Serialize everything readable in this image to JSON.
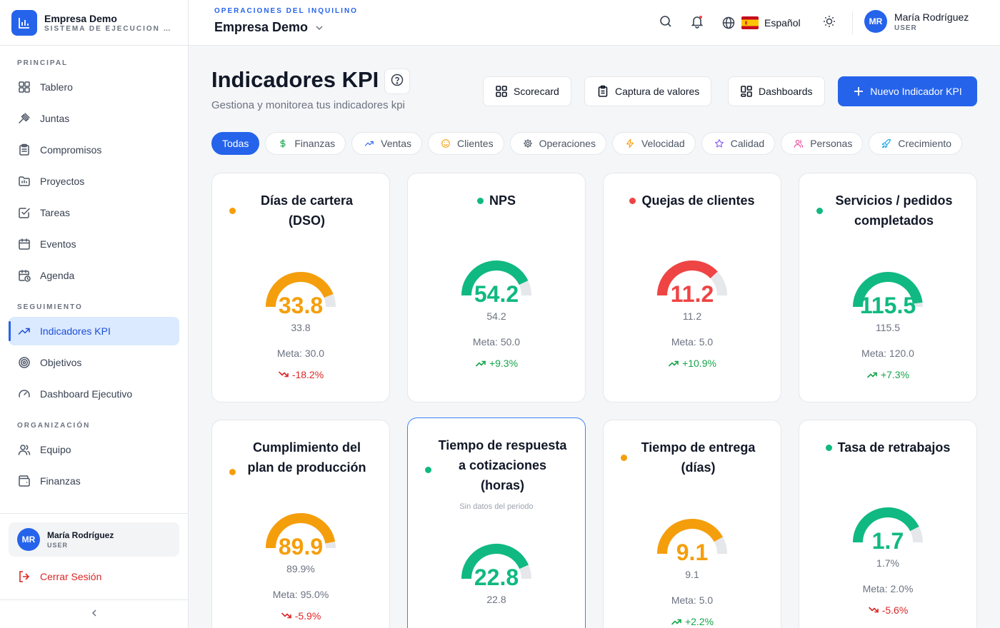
{
  "brand": {
    "name": "Empresa Demo",
    "subtitle": "SISTEMA DE EJECUCIÓN EMPRESARIAL"
  },
  "sidebar": {
    "sections": [
      {
        "label": "PRINCIPAL",
        "items": [
          {
            "label": "Tablero",
            "icon": "grid-icon"
          },
          {
            "label": "Juntas",
            "icon": "gavel-icon"
          },
          {
            "label": "Compromisos",
            "icon": "clipboard-icon"
          },
          {
            "label": "Proyectos",
            "icon": "folder-icon"
          },
          {
            "label": "Tareas",
            "icon": "checkbox-icon"
          },
          {
            "label": "Eventos",
            "icon": "calendar-icon"
          },
          {
            "label": "Agenda",
            "icon": "calendar-clock-icon"
          }
        ]
      },
      {
        "label": "SEGUIMIENTO",
        "items": [
          {
            "label": "Indicadores KPI",
            "icon": "trending-up-icon",
            "active": true
          },
          {
            "label": "Objetivos",
            "icon": "target-icon"
          },
          {
            "label": "Dashboard Ejecutivo",
            "icon": "gauge-icon"
          }
        ]
      },
      {
        "label": "ORGANIZACIÓN",
        "items": [
          {
            "label": "Equipo",
            "icon": "users-icon"
          },
          {
            "label": "Finanzas",
            "icon": "wallet-icon"
          }
        ]
      }
    ],
    "user": {
      "initials": "MR",
      "name": "María Rodríguez",
      "role": "USER"
    },
    "logout_label": "Cerrar Sesión"
  },
  "header": {
    "tenant_label": "OPERACIONES DEL INQUILINO",
    "tenant_name": "Empresa Demo",
    "language": "Español",
    "user": {
      "initials": "MR",
      "name": "María Rodríguez",
      "role": "USER"
    }
  },
  "page": {
    "title": "Indicadores KPI",
    "subtitle": "Gestiona y monitorea tus indicadores kpi",
    "buttons": {
      "scorecard": "Scorecard",
      "capture": "Captura de valores",
      "dashboards": "Dashboards",
      "new": "Nuevo Indicador KPI"
    }
  },
  "filters": [
    {
      "label": "Todas",
      "icon": "",
      "active": true
    },
    {
      "label": "Finanzas",
      "icon": "dollar-icon"
    },
    {
      "label": "Ventas",
      "icon": "trending-up-icon"
    },
    {
      "label": "Clientes",
      "icon": "smile-icon"
    },
    {
      "label": "Operaciones",
      "icon": "cog-icon"
    },
    {
      "label": "Velocidad",
      "icon": "bolt-icon"
    },
    {
      "label": "Calidad",
      "icon": "star-icon"
    },
    {
      "label": "Personas",
      "icon": "users-icon"
    },
    {
      "label": "Crecimiento",
      "icon": "rocket-icon"
    }
  ],
  "colors": {
    "amber": "#f59e0b",
    "green": "#10b981",
    "red": "#ef4444",
    "trend_up": "#16a34a",
    "trend_down": "#dc2626"
  },
  "kpis": [
    {
      "title": "Días de cartera (DSO)",
      "status": "amber",
      "value": "33.8",
      "small": "33.8",
      "goal": "Meta: 30.0",
      "trend": "-18.2%",
      "trend_dir": "down",
      "fill": 0.88
    },
    {
      "title": "NPS",
      "status": "green",
      "value": "54.2",
      "small": "54.2",
      "goal": "Meta: 50.0",
      "trend": "+9.3%",
      "trend_dir": "up",
      "fill": 0.86
    },
    {
      "title": "Quejas de clientes",
      "status": "red",
      "value": "11.2",
      "small": "11.2",
      "goal": "Meta: 5.0",
      "trend": "+10.9%",
      "trend_dir": "up",
      "fill": 0.76
    },
    {
      "title": "Servicios / pedidos completados",
      "status": "green",
      "value": "115.5",
      "small": "115.5",
      "goal": "Meta: 120.0",
      "trend": "+7.3%",
      "trend_dir": "up",
      "fill": 0.96
    },
    {
      "title": "Cumplimiento del plan de producción",
      "status": "amber",
      "value": "89.9",
      "small": "89.9%",
      "goal": "Meta: 95.0%",
      "trend": "-5.9%",
      "trend_dir": "down",
      "fill": 0.94
    },
    {
      "title": "Tiempo de respuesta a cotizaciones (horas)",
      "status": "green",
      "note": "Sin datos del periodo",
      "value": "22.8",
      "small": "22.8",
      "goal": "",
      "trend": "",
      "trend_dir": "up",
      "fill": 0.87,
      "selected": true
    },
    {
      "title": "Tiempo de entrega (días)",
      "status": "amber",
      "value": "9.1",
      "small": "9.1",
      "goal": "Meta: 5.0",
      "trend": "+2.2%",
      "trend_dir": "up",
      "fill": 0.84
    },
    {
      "title": "Tasa de retrabajos",
      "status": "green",
      "value": "1.7",
      "small": "1.7%",
      "goal": "Meta: 2.0%",
      "trend": "-5.6%",
      "trend_dir": "down",
      "fill": 0.85
    }
  ]
}
